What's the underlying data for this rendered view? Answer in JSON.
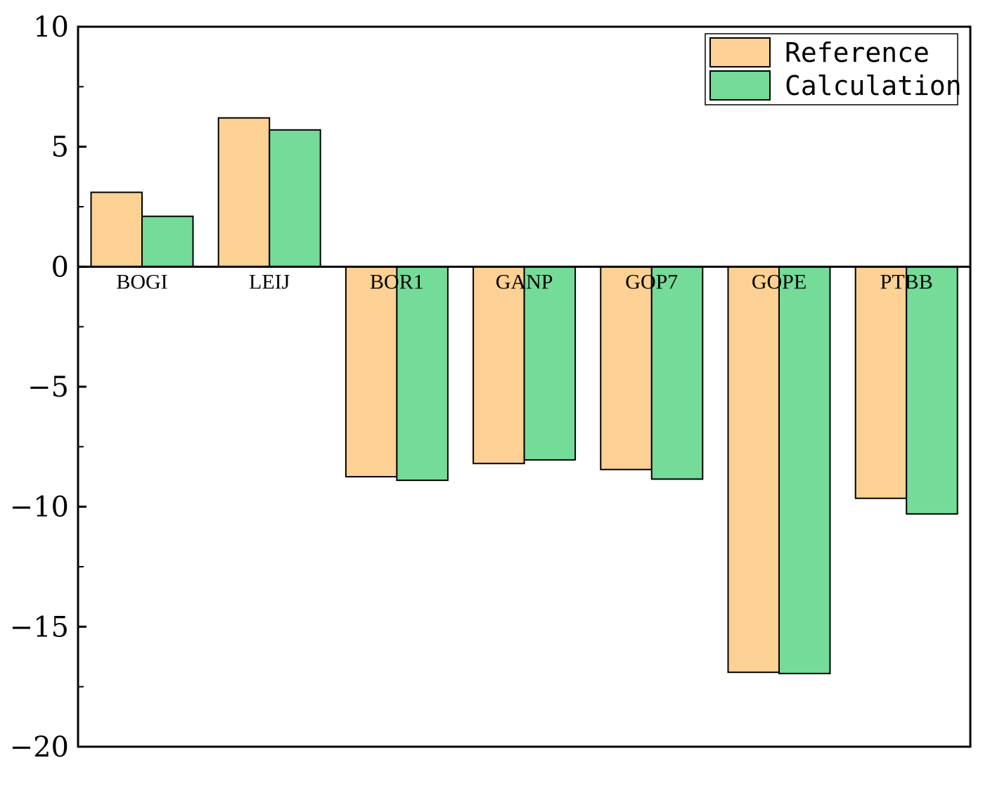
{
  "chart_data": {
    "type": "bar",
    "categories": [
      "BOGI",
      "LEIJ",
      "BOR1",
      "GANP",
      "GOP7",
      "GOPE",
      "PTBB"
    ],
    "series": [
      {
        "name": "Reference",
        "color": "#FDD093",
        "values": [
          3.1,
          6.2,
          -8.75,
          -8.2,
          -8.45,
          -16.9,
          -9.65
        ]
      },
      {
        "name": "Calculation",
        "color": "#74DB98",
        "values": [
          2.1,
          5.7,
          -8.9,
          -8.05,
          -8.85,
          -16.95,
          -10.3
        ]
      }
    ],
    "ylim": [
      -20,
      10
    ],
    "yticks": [
      10,
      5,
      0,
      -5,
      -10,
      -15,
      -20
    ],
    "ytick_labels": [
      "10",
      "5",
      "0",
      "−5",
      "−10",
      "−15",
      "−20"
    ],
    "title": "",
    "xlabel": "",
    "ylabel": "",
    "legend_position": "top-right",
    "grid": false
  }
}
